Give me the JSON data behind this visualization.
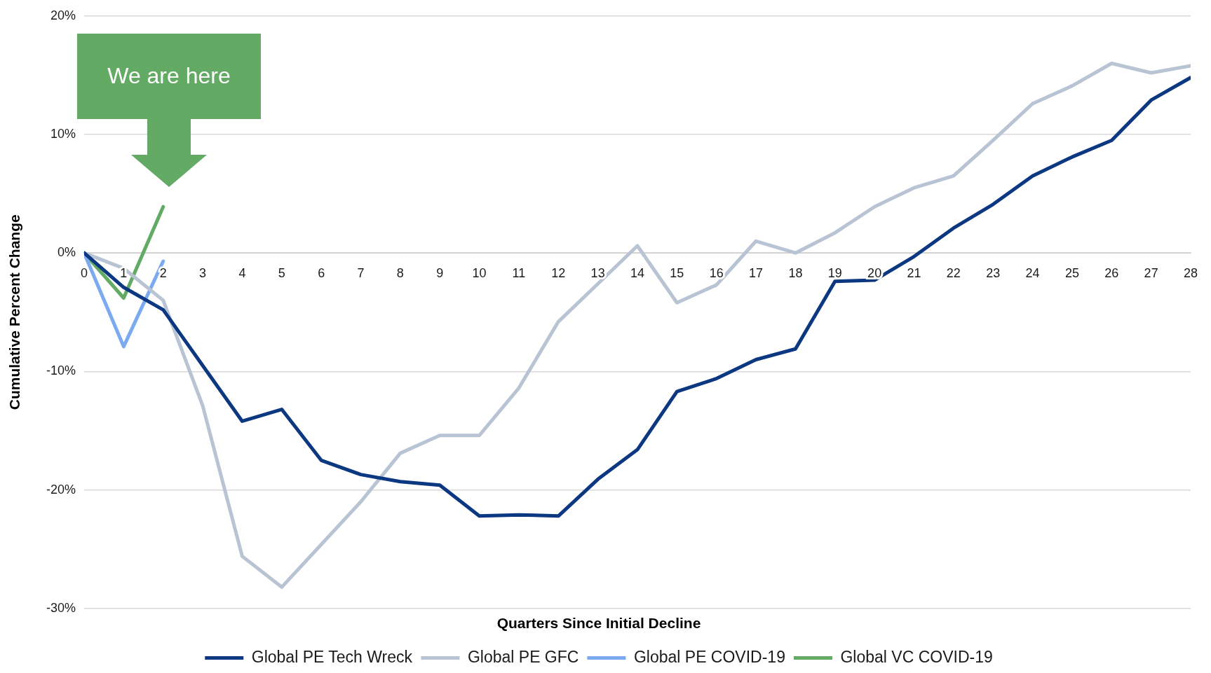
{
  "chart_data": {
    "type": "line",
    "xlabel": "Quarters Since Initial Decline",
    "ylabel": "Cumulative Percent Change",
    "x": [
      0,
      1,
      2,
      3,
      4,
      5,
      6,
      7,
      8,
      9,
      10,
      11,
      12,
      13,
      14,
      15,
      16,
      17,
      18,
      19,
      20,
      21,
      22,
      23,
      24,
      25,
      26,
      27,
      28
    ],
    "xlim": [
      0,
      28
    ],
    "xticks": [
      0,
      1,
      2,
      3,
      4,
      5,
      6,
      7,
      8,
      9,
      10,
      11,
      12,
      13,
      14,
      15,
      16,
      17,
      18,
      19,
      20,
      21,
      22,
      23,
      24,
      25,
      26,
      27,
      28
    ],
    "ylim": [
      -30,
      20
    ],
    "yticks": [
      {
        "value": 20,
        "label": "20%"
      },
      {
        "value": 10,
        "label": "10%"
      },
      {
        "value": 0,
        "label": "0%"
      },
      {
        "value": -10,
        "label": "-10%"
      },
      {
        "value": -20,
        "label": "-20%"
      },
      {
        "value": -30,
        "label": "-30%"
      }
    ],
    "grid": "y",
    "legend": "bottom",
    "series": [
      {
        "name": "Global PE Tech Wreck",
        "color": "#0c3781",
        "values": [
          0,
          -2.9,
          -4.8,
          -9.5,
          -14.2,
          -13.2,
          -17.5,
          -18.7,
          -19.3,
          -19.6,
          -22.2,
          -22.1,
          -22.2,
          -19.1,
          -16.6,
          -11.7,
          -10.6,
          -9.0,
          -8.1,
          -2.4,
          -2.3,
          -0.3,
          2.1,
          4.1,
          6.5,
          8.1,
          9.5,
          12.9,
          14.8
        ]
      },
      {
        "name": "Global PE GFC",
        "color": "#b8c3d3",
        "values": [
          0,
          -1.3,
          -4.0,
          -12.9,
          -25.6,
          -28.2,
          -24.6,
          -21.0,
          -16.9,
          -15.4,
          -15.4,
          -11.4,
          -5.8,
          -2.6,
          0.6,
          -4.2,
          -2.7,
          1.0,
          0,
          1.7,
          3.9,
          5.5,
          6.5,
          9.5,
          12.6,
          14.1,
          16.0,
          15.2,
          15.8
        ]
      },
      {
        "name": "Global PE COVID-19",
        "color": "#7baaf0",
        "x": [
          0,
          1,
          2
        ],
        "values": [
          0,
          -7.9,
          -0.7
        ]
      },
      {
        "name": "Global VC COVID-19",
        "color": "#63aa65",
        "x": [
          0,
          1,
          2
        ],
        "values": [
          0,
          -3.8,
          3.9
        ]
      }
    ],
    "annotations": [
      "We are here"
    ]
  }
}
